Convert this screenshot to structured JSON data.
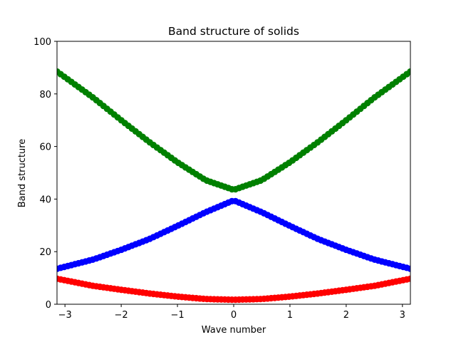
{
  "chart_data": {
    "type": "scatter",
    "title": "Band structure of solids",
    "xlabel": "Wave number",
    "ylabel": "Band structure",
    "xlim": [
      -3.14159,
      3.14159
    ],
    "ylim": [
      0,
      100
    ],
    "xticks": [
      -3,
      -2,
      -1,
      0,
      1,
      2,
      3
    ],
    "xtick_labels": [
      "−3",
      "−2",
      "−1",
      "0",
      "1",
      "2",
      "3"
    ],
    "yticks": [
      0,
      20,
      40,
      60,
      80,
      100
    ],
    "ytick_labels": [
      "0",
      "20",
      "40",
      "60",
      "80",
      "100"
    ],
    "grid": false,
    "legend": "none",
    "x": [
      -3.14,
      -2.5,
      -2.0,
      -1.5,
      -1.0,
      -0.5,
      0.0,
      0.5,
      1.0,
      1.5,
      2.0,
      2.5,
      3.14
    ],
    "series": [
      {
        "color": "#ff0000",
        "marker": "circle",
        "values": [
          9.7,
          7.0,
          5.5,
          4.1,
          2.9,
          2.0,
          1.7,
          2.0,
          2.9,
          4.1,
          5.5,
          7.0,
          9.7
        ]
      },
      {
        "color": "#0000ff",
        "marker": "circle",
        "values": [
          13.5,
          17.0,
          20.7,
          24.8,
          29.8,
          35.0,
          39.5,
          35.0,
          29.8,
          24.8,
          20.7,
          17.0,
          13.5
        ]
      },
      {
        "color": "#008000",
        "marker": "circle",
        "values": [
          88.5,
          78.6,
          70.0,
          61.7,
          54.0,
          47.2,
          43.5,
          47.2,
          54.0,
          61.7,
          70.0,
          78.6,
          88.5
        ]
      }
    ]
  }
}
